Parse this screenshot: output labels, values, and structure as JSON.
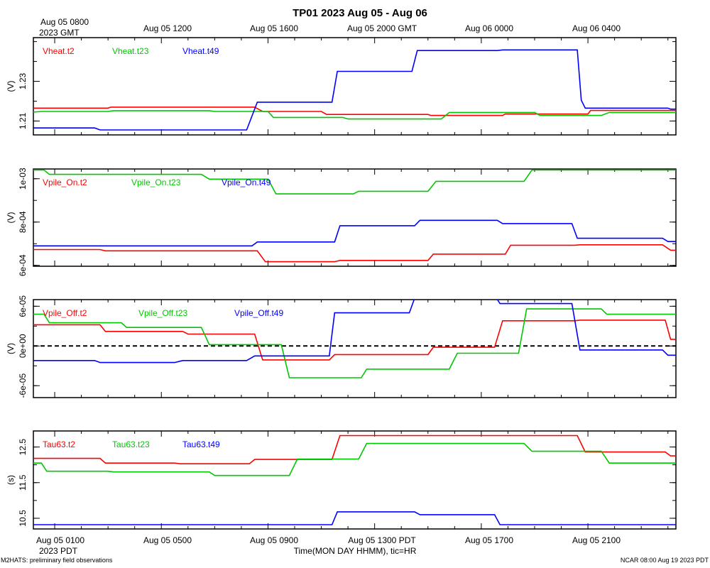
{
  "title": "TP01 2023 Aug 05 - Aug 06",
  "top_axis": {
    "labels": [
      "Aug 05 1200",
      "Aug 05 1600",
      "Aug 05 2000 GMT",
      "Aug 06 0000",
      "Aug 06 0400"
    ],
    "first_label": "Aug 05 0800",
    "first_sublabel": "2023 GMT"
  },
  "bottom_axis": {
    "labels": [
      "Aug 05 0100",
      "Aug 05 0500",
      "Aug 05 0900",
      "Aug 05 1300 PDT",
      "Aug 05 1700",
      "Aug 05 2100"
    ],
    "year_label": "2023 PDT",
    "title": "Time(MON DAY HHMM), tic=HR"
  },
  "footer": {
    "left": "M2HATS: preliminary field observations",
    "right": "NCAR 08:00 Aug 19 2023 PDT"
  },
  "colors": {
    "t2": "#ff0000",
    "t23": "#00c800",
    "t49": "#0000ff",
    "zero_line": "#000000"
  },
  "chart_data": [
    {
      "type": "line",
      "ylabel": "(V)",
      "ylim": [
        1.203,
        1.252
      ],
      "yticks": [
        {
          "value": 1.21,
          "label": "1.21"
        },
        {
          "value": 1.23,
          "label": "1.23"
        }
      ],
      "x_unit": "hours since Aug 05 00:00 PDT",
      "xlim": [
        0.2,
        24.3
      ],
      "series": [
        {
          "name": "Vheat.t2",
          "key": "t2",
          "points": [
            [
              0.2,
              1.2165
            ],
            [
              3.0,
              1.2165
            ],
            [
              3.1,
              1.217
            ],
            [
              8.5,
              1.217
            ],
            [
              8.8,
              1.2148
            ],
            [
              11.0,
              1.2148
            ],
            [
              11.2,
              1.2133
            ],
            [
              15.0,
              1.2133
            ],
            [
              15.1,
              1.2128
            ],
            [
              17.8,
              1.2128
            ],
            [
              17.9,
              1.2135
            ],
            [
              21.0,
              1.2135
            ],
            [
              21.1,
              1.2153
            ],
            [
              24.3,
              1.2153
            ]
          ]
        },
        {
          "name": "Vheat.t23",
          "key": "t23",
          "points": [
            [
              0.2,
              1.2145
            ],
            [
              0.5,
              1.2148
            ],
            [
              3.0,
              1.2148
            ],
            [
              3.2,
              1.2152
            ],
            [
              6.8,
              1.2152
            ],
            [
              7.0,
              1.2148
            ],
            [
              9.0,
              1.2148
            ],
            [
              9.2,
              1.2118
            ],
            [
              11.8,
              1.2118
            ],
            [
              12.0,
              1.211
            ],
            [
              15.5,
              1.211
            ],
            [
              15.8,
              1.2143
            ],
            [
              19.0,
              1.2143
            ],
            [
              19.2,
              1.2128
            ],
            [
              21.5,
              1.2128
            ],
            [
              21.8,
              1.2143
            ],
            [
              24.3,
              1.2143
            ]
          ]
        },
        {
          "name": "Vheat.t49",
          "key": "t49",
          "points": [
            [
              0.2,
              1.2065
            ],
            [
              2.5,
              1.2065
            ],
            [
              2.7,
              1.2055
            ],
            [
              8.2,
              1.2055
            ],
            [
              8.6,
              1.2195
            ],
            [
              11.4,
              1.2195
            ],
            [
              11.6,
              1.235
            ],
            [
              14.4,
              1.235
            ],
            [
              14.6,
              1.2455
            ],
            [
              17.6,
              1.2455
            ],
            [
              17.8,
              1.2458
            ],
            [
              20.6,
              1.2458
            ],
            [
              20.75,
              1.2205
            ],
            [
              20.9,
              1.2165
            ],
            [
              24.0,
              1.2165
            ],
            [
              24.1,
              1.216
            ],
            [
              24.3,
              1.216
            ]
          ]
        }
      ]
    },
    {
      "type": "line",
      "ylabel": "(V)",
      "ylim": [
        0.000596,
        0.001045
      ],
      "yticks": [
        {
          "value": 0.0006,
          "label": "6e-04"
        },
        {
          "value": 0.0008,
          "label": "8e-04"
        },
        {
          "value": 0.001,
          "label": "1e-03"
        }
      ],
      "x_unit": "hours since Aug 05 00:00 PDT",
      "xlim": [
        0.2,
        24.3
      ],
      "series": [
        {
          "name": "Vpile_On.t2",
          "key": "t2",
          "points": [
            [
              0.2,
              0.000673
            ],
            [
              2.7,
              0.000673
            ],
            [
              2.9,
              0.000667
            ],
            [
              8.6,
              0.000667
            ],
            [
              8.9,
              0.000617
            ],
            [
              11.5,
              0.000617
            ],
            [
              11.7,
              0.000623
            ],
            [
              15.0,
              0.000623
            ],
            [
              15.2,
              0.000652
            ],
            [
              17.9,
              0.000652
            ],
            [
              18.1,
              0.000693
            ],
            [
              20.5,
              0.000693
            ],
            [
              20.7,
              0.000695
            ],
            [
              23.8,
              0.000695
            ],
            [
              24.1,
              0.00067
            ],
            [
              24.3,
              0.00067
            ]
          ]
        },
        {
          "name": "Vpile_On.t23",
          "key": "t23",
          "points": [
            [
              0.2,
              0.00104
            ],
            [
              0.6,
              0.00104
            ],
            [
              0.8,
              0.00102
            ],
            [
              6.5,
              0.00102
            ],
            [
              6.8,
              0.000998
            ],
            [
              9.0,
              0.000998
            ],
            [
              9.3,
              0.00093
            ],
            [
              12.2,
              0.00093
            ],
            [
              12.4,
              0.000942
            ],
            [
              15.0,
              0.000942
            ],
            [
              15.3,
              0.000988
            ],
            [
              18.6,
              0.000988
            ],
            [
              18.9,
              0.00104
            ],
            [
              24.3,
              0.00104
            ]
          ]
        },
        {
          "name": "Vpile_On.t49",
          "key": "t49",
          "points": [
            [
              0.2,
              0.00069
            ],
            [
              8.4,
              0.00069
            ],
            [
              8.6,
              0.000708
            ],
            [
              11.5,
              0.000708
            ],
            [
              11.7,
              0.000783
            ],
            [
              14.5,
              0.000783
            ],
            [
              14.7,
              0.000808
            ],
            [
              17.6,
              0.000808
            ],
            [
              17.8,
              0.000793
            ],
            [
              20.4,
              0.000793
            ],
            [
              20.6,
              0.000725
            ],
            [
              23.8,
              0.000725
            ],
            [
              24.0,
              0.00071
            ],
            [
              24.3,
              0.00071
            ]
          ]
        }
      ]
    },
    {
      "type": "line",
      "ylabel": "(V)",
      "ylim": [
        -7.8e-05,
        7e-05
      ],
      "yticks": [
        {
          "value": -6e-05,
          "label": "-6e-05"
        },
        {
          "value": 0,
          "label": "0e+00"
        },
        {
          "value": 6e-05,
          "label": "6e-05"
        }
      ],
      "zero_line": 0,
      "x_unit": "hours since Aug 05 00:00 PDT",
      "xlim": [
        0.2,
        24.3
      ],
      "series": [
        {
          "name": "Vpile_Off.t2",
          "key": "t2",
          "points": [
            [
              0.2,
              3.2e-05
            ],
            [
              2.7,
              3.2e-05
            ],
            [
              2.9,
              2.2e-05
            ],
            [
              5.8,
              2.2e-05
            ],
            [
              6.0,
              1.8e-05
            ],
            [
              8.5,
              1.8e-05
            ],
            [
              8.8,
              -2.1e-05
            ],
            [
              11.3,
              -2.1e-05
            ],
            [
              11.5,
              -1.3e-05
            ],
            [
              15.0,
              -1.3e-05
            ],
            [
              15.2,
              -2e-06
            ],
            [
              17.5,
              -2e-06
            ],
            [
              17.8,
              3.8e-05
            ],
            [
              20.5,
              3.8e-05
            ],
            [
              20.7,
              3.9e-05
            ],
            [
              23.9,
              3.9e-05
            ],
            [
              24.1,
              1e-05
            ],
            [
              24.3,
              1e-05
            ]
          ]
        },
        {
          "name": "Vpile_Off.t23",
          "key": "t23",
          "points": [
            [
              0.2,
              4.8e-05
            ],
            [
              0.6,
              4.8e-05
            ],
            [
              0.8,
              3.5e-05
            ],
            [
              3.5,
              3.5e-05
            ],
            [
              3.7,
              2.8e-05
            ],
            [
              6.5,
              2.8e-05
            ],
            [
              6.8,
              2e-06
            ],
            [
              9.5,
              2e-06
            ],
            [
              9.8,
              -4.8e-05
            ],
            [
              12.5,
              -4.8e-05
            ],
            [
              12.7,
              -3.5e-05
            ],
            [
              15.8,
              -3.5e-05
            ],
            [
              16.1,
              -1.1e-05
            ],
            [
              18.4,
              -1.1e-05
            ],
            [
              18.7,
              5.6e-05
            ],
            [
              21.5,
              5.6e-05
            ],
            [
              21.7,
              4.8e-05
            ],
            [
              24.3,
              4.8e-05
            ]
          ]
        },
        {
          "name": "Vpile_Off.t49",
          "key": "t49",
          "points": [
            [
              0.2,
              -2.2e-05
            ],
            [
              2.5,
              -2.2e-05
            ],
            [
              2.7,
              -2.5e-05
            ],
            [
              5.5,
              -2.5e-05
            ],
            [
              5.8,
              -2.2e-05
            ],
            [
              8.2,
              -2.2e-05
            ],
            [
              8.5,
              -1.5e-05
            ],
            [
              11.3,
              -1.5e-05
            ],
            [
              11.5,
              5e-05
            ],
            [
              14.3,
              5e-05
            ],
            [
              14.6,
              8.3e-05
            ],
            [
              17.4,
              8.3e-05
            ],
            [
              17.7,
              6.4e-05
            ],
            [
              20.4,
              6.4e-05
            ],
            [
              20.7,
              -6e-06
            ],
            [
              23.8,
              -6e-06
            ],
            [
              24.0,
              -1.4e-05
            ],
            [
              24.3,
              -1.4e-05
            ]
          ]
        }
      ]
    },
    {
      "type": "line",
      "ylabel": "(s)",
      "ylim": [
        10.2,
        12.95
      ],
      "yticks": [
        {
          "value": 10.5,
          "label": "10.5"
        },
        {
          "value": 11.5,
          "label": "11.5"
        },
        {
          "value": 12.5,
          "label": "12.5"
        }
      ],
      "x_unit": "hours since Aug 05 00:00 PDT",
      "xlim": [
        0.2,
        24.3
      ],
      "series": [
        {
          "name": "Tau63.t2",
          "key": "t2",
          "points": [
            [
              0.2,
              12.18
            ],
            [
              2.7,
              12.18
            ],
            [
              2.9,
              12.05
            ],
            [
              5.5,
              12.05
            ],
            [
              5.7,
              12.03
            ],
            [
              8.3,
              12.03
            ],
            [
              8.5,
              12.15
            ],
            [
              11.4,
              12.15
            ],
            [
              11.7,
              12.82
            ],
            [
              20.6,
              12.82
            ],
            [
              20.9,
              12.36
            ],
            [
              23.9,
              12.36
            ],
            [
              24.1,
              12.25
            ],
            [
              24.3,
              12.25
            ]
          ]
        },
        {
          "name": "Tau63.t23",
          "key": "t23",
          "points": [
            [
              0.2,
              12.05
            ],
            [
              0.5,
              12.05
            ],
            [
              0.7,
              11.82
            ],
            [
              3.0,
              11.82
            ],
            [
              3.2,
              11.8
            ],
            [
              6.8,
              11.8
            ],
            [
              7.0,
              11.7
            ],
            [
              9.8,
              11.7
            ],
            [
              10.1,
              12.16
            ],
            [
              12.4,
              12.16
            ],
            [
              12.7,
              12.6
            ],
            [
              18.6,
              12.6
            ],
            [
              18.9,
              12.38
            ],
            [
              21.5,
              12.38
            ],
            [
              21.8,
              12.05
            ],
            [
              24.3,
              12.05
            ]
          ]
        },
        {
          "name": "Tau63.t49",
          "key": "t49",
          "points": [
            [
              0.2,
              10.32
            ],
            [
              11.4,
              10.32
            ],
            [
              11.6,
              10.68
            ],
            [
              14.5,
              10.68
            ],
            [
              14.7,
              10.6
            ],
            [
              17.5,
              10.6
            ],
            [
              17.7,
              10.32
            ],
            [
              24.3,
              10.32
            ]
          ]
        }
      ]
    }
  ]
}
